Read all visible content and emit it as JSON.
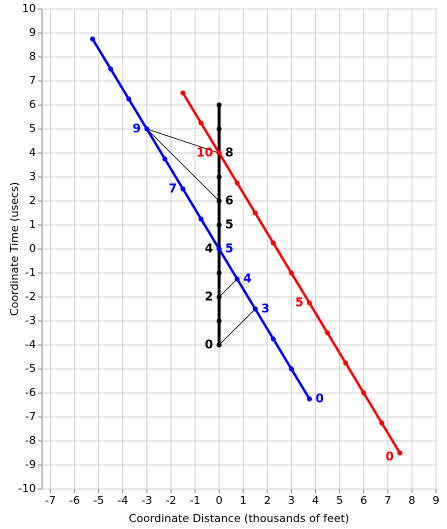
{
  "chart_data": {
    "type": "line",
    "x_label": "Coordinate Distance (thousands of feet)",
    "y_label": "Coordinate Time (usecs)",
    "xlim": [
      -7.35,
      9
    ],
    "ylim": [
      -10,
      10
    ],
    "xticks": [
      -7,
      -6,
      -5,
      -4,
      -3,
      -2,
      -1,
      0,
      1,
      2,
      3,
      4,
      5,
      6,
      7,
      8,
      9
    ],
    "yticks": [
      -10,
      -9,
      -8,
      -7,
      -6,
      -5,
      -4,
      -3,
      -2,
      -1,
      0,
      1,
      2,
      3,
      4,
      5,
      6,
      7,
      8,
      9,
      10
    ],
    "grid": true,
    "series": [
      {
        "color": "#000000",
        "x": [
          0,
          0,
          0,
          0,
          0,
          0,
          0,
          0,
          0,
          0,
          0
        ],
        "y": [
          -4,
          -3,
          -2,
          -1,
          0,
          1,
          2,
          3,
          4,
          5,
          6
        ],
        "point_labels": [
          "0",
          null,
          "2",
          null,
          "4",
          "5",
          "6",
          null,
          "8",
          null,
          null
        ]
      },
      {
        "color": "#0000ff",
        "x": [
          3.75,
          3,
          2.25,
          1.5,
          0.75,
          0,
          -0.75,
          -1.5,
          -2.25,
          -3,
          -3.75,
          -4.5,
          -5.25
        ],
        "y": [
          -6.25,
          -5,
          -3.75,
          -2.5,
          -1.25,
          0,
          1.25,
          2.5,
          3.75,
          5,
          6.25,
          7.5,
          8.75
        ],
        "point_labels": [
          "0",
          null,
          null,
          "3",
          "4",
          "5",
          null,
          "7",
          null,
          "9",
          null,
          null,
          null
        ]
      },
      {
        "color": "#ff0000",
        "x": [
          7.5,
          6.75,
          6,
          5.25,
          4.5,
          3.75,
          3,
          2.25,
          1.5,
          0.75,
          0,
          -0.75,
          -1.5
        ],
        "y": [
          -8.5,
          -7.25,
          -6,
          -4.75,
          -3.5,
          -2.25,
          -1,
          0.25,
          1.5,
          2.75,
          4,
          5.25,
          6.5
        ],
        "point_labels": [
          "0",
          null,
          null,
          null,
          null,
          "5",
          null,
          null,
          null,
          null,
          "10",
          null,
          null
        ]
      }
    ],
    "signals": {
      "color": "#000000",
      "x": [
        0,
        1.5,
        null,
        0,
        0.75,
        null,
        0,
        -3,
        0
      ],
      "y": [
        -4,
        -2.5,
        null,
        -2,
        -1.25,
        null,
        2,
        5,
        4
      ]
    }
  }
}
